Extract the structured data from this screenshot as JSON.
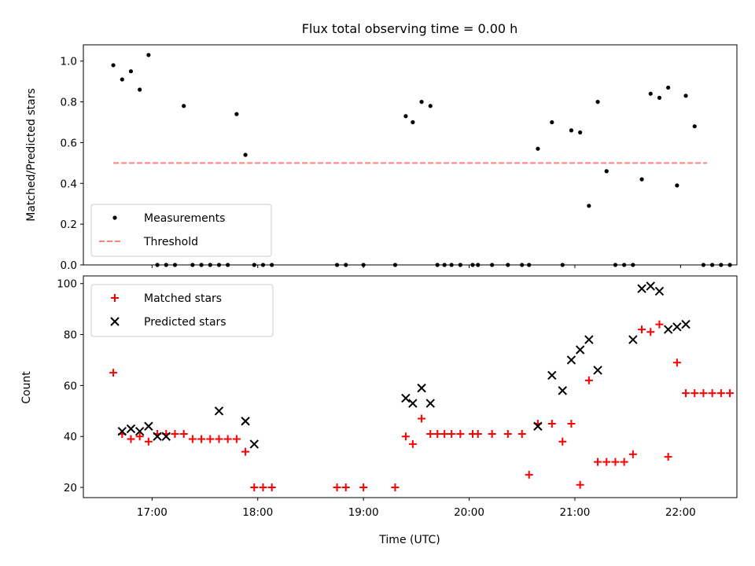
{
  "chart_data": [
    {
      "type": "scatter",
      "title": "Flux total observing time = 0.00 h",
      "xlabel": "",
      "ylabel": "Matched/Predicted stars",
      "ylim": [
        0,
        1.08
      ],
      "yticks": [
        "0.0",
        "0.2",
        "0.4",
        "0.6",
        "0.8",
        "1.0"
      ],
      "ytick_values": [
        0,
        0.2,
        0.4,
        0.6,
        0.8,
        1.0
      ],
      "legend": "lower left",
      "series": [
        {
          "name": "Measurements",
          "color": "#000000",
          "marker": "dot",
          "x": [
            "16:38",
            "16:43",
            "16:48",
            "16:53",
            "16:58",
            "17:03",
            "17:08",
            "17:13",
            "17:18",
            "17:23",
            "17:28",
            "17:33",
            "17:38",
            "17:43",
            "17:48",
            "17:53",
            "17:58",
            "18:03",
            "18:08",
            "18:45",
            "18:50",
            "19:00",
            "19:18",
            "19:24",
            "19:28",
            "19:33",
            "19:38",
            "19:42",
            "19:46",
            "19:50",
            "19:55",
            "20:02",
            "20:05",
            "20:13",
            "20:22",
            "20:30",
            "20:34",
            "20:39",
            "20:47",
            "20:53",
            "20:58",
            "21:03",
            "21:08",
            "21:13",
            "21:18",
            "21:23",
            "21:28",
            "21:33",
            "21:38",
            "21:43",
            "21:48",
            "21:53",
            "21:58",
            "22:03",
            "22:08",
            "22:13",
            "22:18",
            "22:23",
            "22:28"
          ],
          "y": [
            0.98,
            0.91,
            0.95,
            0.86,
            1.03,
            0.0,
            0.0,
            0.0,
            0.78,
            0.0,
            0.0,
            0.0,
            0.0,
            0.0,
            0.74,
            0.54,
            0.0,
            0.0,
            0.0,
            0.0,
            0.0,
            0.0,
            0.0,
            0.73,
            0.7,
            0.8,
            0.78,
            0.0,
            0.0,
            0.0,
            0.0,
            0.0,
            0.0,
            0.0,
            0.0,
            0.0,
            0.0,
            0.57,
            0.7,
            0.0,
            0.66,
            0.65,
            0.29,
            0.8,
            0.46,
            0.0,
            0.0,
            0.0,
            0.42,
            0.84,
            0.82,
            0.87,
            0.39,
            0.83,
            0.68,
            0.0,
            0.0,
            0.0,
            0.0
          ]
        },
        {
          "name": "Threshold",
          "color": "#ff7f7f",
          "style": "dashed",
          "x": [
            "16:38",
            "22:15"
          ],
          "y": [
            0.5,
            0.5
          ]
        }
      ]
    },
    {
      "type": "scatter",
      "title": "",
      "xlabel": "Time (UTC)",
      "ylabel": "Count",
      "ylim": [
        16,
        103
      ],
      "yticks": [
        "20",
        "40",
        "60",
        "80",
        "100"
      ],
      "ytick_values": [
        20,
        40,
        60,
        80,
        100
      ],
      "xticks": [
        "17:00",
        "18:00",
        "19:00",
        "20:00",
        "21:00",
        "22:00"
      ],
      "xlim": [
        "16:21",
        "22:32"
      ],
      "legend": "upper left",
      "series": [
        {
          "name": "Matched stars",
          "color": "#ff0000",
          "marker": "plus",
          "x": [
            "16:38",
            "16:43",
            "16:48",
            "16:53",
            "16:58",
            "17:03",
            "17:08",
            "17:13",
            "17:18",
            "17:23",
            "17:28",
            "17:33",
            "17:38",
            "17:43",
            "17:48",
            "17:53",
            "17:58",
            "18:03",
            "18:08",
            "18:45",
            "18:50",
            "19:00",
            "19:18",
            "19:24",
            "19:28",
            "19:33",
            "19:38",
            "19:42",
            "19:46",
            "19:50",
            "19:55",
            "20:02",
            "20:05",
            "20:13",
            "20:22",
            "20:30",
            "20:34",
            "20:39",
            "20:47",
            "20:53",
            "20:58",
            "21:03",
            "21:08",
            "21:13",
            "21:18",
            "21:23",
            "21:28",
            "21:33",
            "21:38",
            "21:43",
            "21:48",
            "21:53",
            "21:58",
            "22:03",
            "22:08",
            "22:13",
            "22:18",
            "22:23",
            "22:28"
          ],
          "y": [
            65,
            41,
            39,
            40,
            38,
            41,
            41,
            41,
            41,
            39,
            39,
            39,
            39,
            39,
            39,
            34,
            20,
            20,
            20,
            20,
            20,
            20,
            20,
            40,
            37,
            47,
            41,
            41,
            41,
            41,
            41,
            41,
            41,
            41,
            41,
            41,
            25,
            45,
            45,
            38,
            45,
            21,
            62,
            30,
            30,
            30,
            30,
            33,
            82,
            81,
            84,
            32,
            69,
            57,
            57,
            57,
            57,
            57,
            57
          ]
        },
        {
          "name": "Predicted stars",
          "color": "#000000",
          "marker": "x",
          "x": [
            "16:43",
            "16:48",
            "16:53",
            "16:58",
            "17:03",
            "17:08",
            "17:38",
            "17:53",
            "17:58",
            "19:24",
            "19:28",
            "19:33",
            "19:38",
            "20:39",
            "20:47",
            "20:53",
            "20:58",
            "21:03",
            "21:08",
            "21:13",
            "21:33",
            "21:38",
            "21:43",
            "21:48",
            "21:53",
            "21:58",
            "22:03"
          ],
          "y": [
            42,
            43,
            42,
            44,
            40,
            40,
            50,
            46,
            37,
            55,
            53,
            59,
            53,
            44,
            64,
            58,
            70,
            74,
            78,
            66,
            78,
            98,
            99,
            97,
            82,
            83,
            84
          ]
        }
      ]
    }
  ]
}
